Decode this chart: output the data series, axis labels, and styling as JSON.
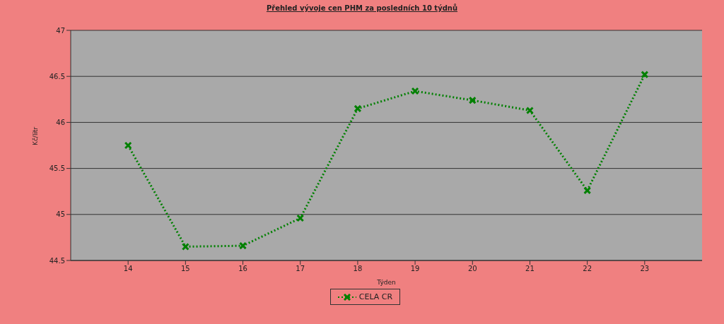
{
  "chart_data": {
    "type": "line",
    "title": "Přehled vývoje cen PHM  za posledních 10 týdnů",
    "xlabel": "Týden",
    "ylabel": "Kč/litr",
    "x": [
      14,
      15,
      16,
      17,
      18,
      19,
      20,
      21,
      22,
      23
    ],
    "series": [
      {
        "name": "CELA CR",
        "color": "#008000",
        "values": [
          45.75,
          44.65,
          44.66,
          44.96,
          46.15,
          46.34,
          46.24,
          46.13,
          45.26,
          46.52
        ]
      }
    ],
    "xlim": [
      13,
      24
    ],
    "xticks": [
      14,
      15,
      16,
      17,
      18,
      19,
      20,
      21,
      22,
      23
    ],
    "ylim": [
      44.5,
      47
    ],
    "yticks": [
      44.5,
      45,
      45.5,
      46,
      46.5,
      47
    ],
    "grid": "y",
    "legend": "bottom",
    "marker": "cross",
    "line_style": "dotted"
  }
}
